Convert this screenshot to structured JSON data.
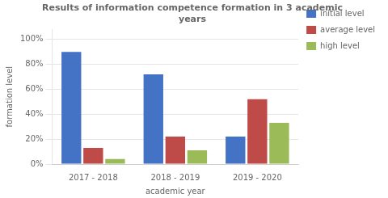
{
  "chart_data": {
    "type": "bar",
    "title": "Results of information competence formation in 3 academic\nyears",
    "xlabel": "academic year",
    "ylabel": "formation level",
    "categories": [
      "2017 - 2018",
      "2018 - 2019",
      "2019 - 2020"
    ],
    "series": [
      {
        "name": "initial level",
        "color": "#4472C4",
        "values": [
          90,
          72,
          22
        ]
      },
      {
        "name": "average level",
        "color": "#BE4B48",
        "values": [
          13,
          22,
          52
        ]
      },
      {
        "name": "high level",
        "color": "#9BBB59",
        "values": [
          4,
          11,
          33
        ]
      }
    ],
    "ylim": [
      0,
      108
    ],
    "yticks": [
      {
        "value": 0,
        "label": "0%"
      },
      {
        "value": 20,
        "label": "20%"
      },
      {
        "value": 40,
        "label": "40%"
      },
      {
        "value": 60,
        "label": "60%"
      },
      {
        "value": 80,
        "label": "80%"
      },
      {
        "value": 100,
        "label": "100%"
      }
    ],
    "grid": true,
    "legend": "right"
  }
}
